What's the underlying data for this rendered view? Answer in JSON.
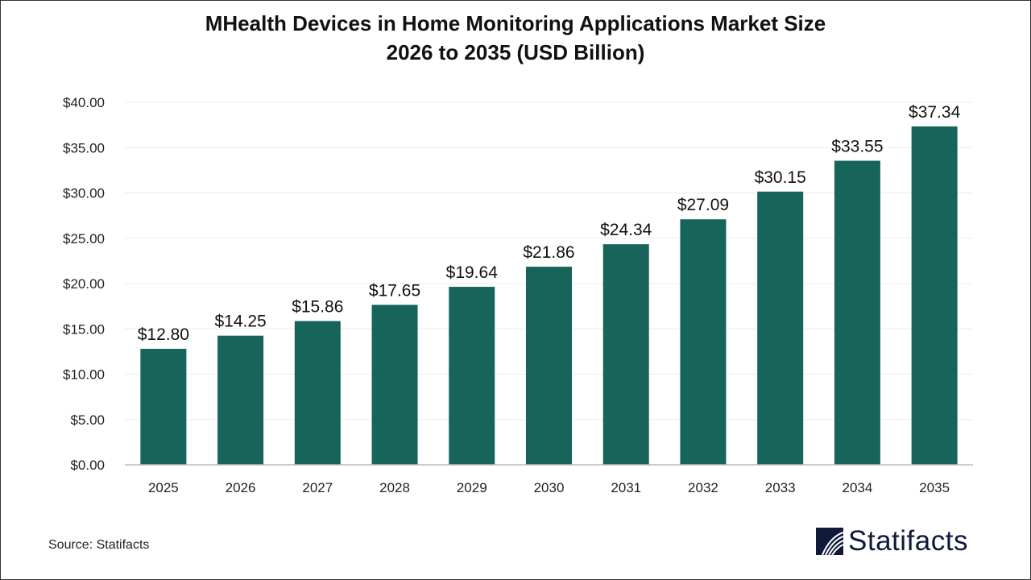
{
  "chart_data": {
    "type": "bar",
    "title": "MHealth Devices in Home Monitoring Applications Market Size",
    "subtitle": "2026 to 2035 (USD Billion)",
    "categories": [
      "2025",
      "2026",
      "2027",
      "2028",
      "2029",
      "2030",
      "2031",
      "2032",
      "2033",
      "2034",
      "2035"
    ],
    "values": [
      12.8,
      14.25,
      15.86,
      17.65,
      19.64,
      21.86,
      24.34,
      27.09,
      30.15,
      33.55,
      37.34
    ],
    "data_labels": [
      "$12.80",
      "$14.25",
      "$15.86",
      "$17.65",
      "$19.64",
      "$21.86",
      "$24.34",
      "$27.09",
      "$30.15",
      "$33.55",
      "$37.34"
    ],
    "yticks": [
      "$0.00",
      "$5.00",
      "$10.00",
      "$15.00",
      "$20.00",
      "$25.00",
      "$30.00",
      "$35.00",
      "$40.00"
    ],
    "ylim": [
      0,
      40
    ],
    "xlabel": "",
    "ylabel": "",
    "grid": true,
    "bar_color": "#17655a"
  },
  "source": "Source: Statifacts",
  "logo": {
    "text": "Statifacts",
    "color": "#0f1a3a"
  }
}
